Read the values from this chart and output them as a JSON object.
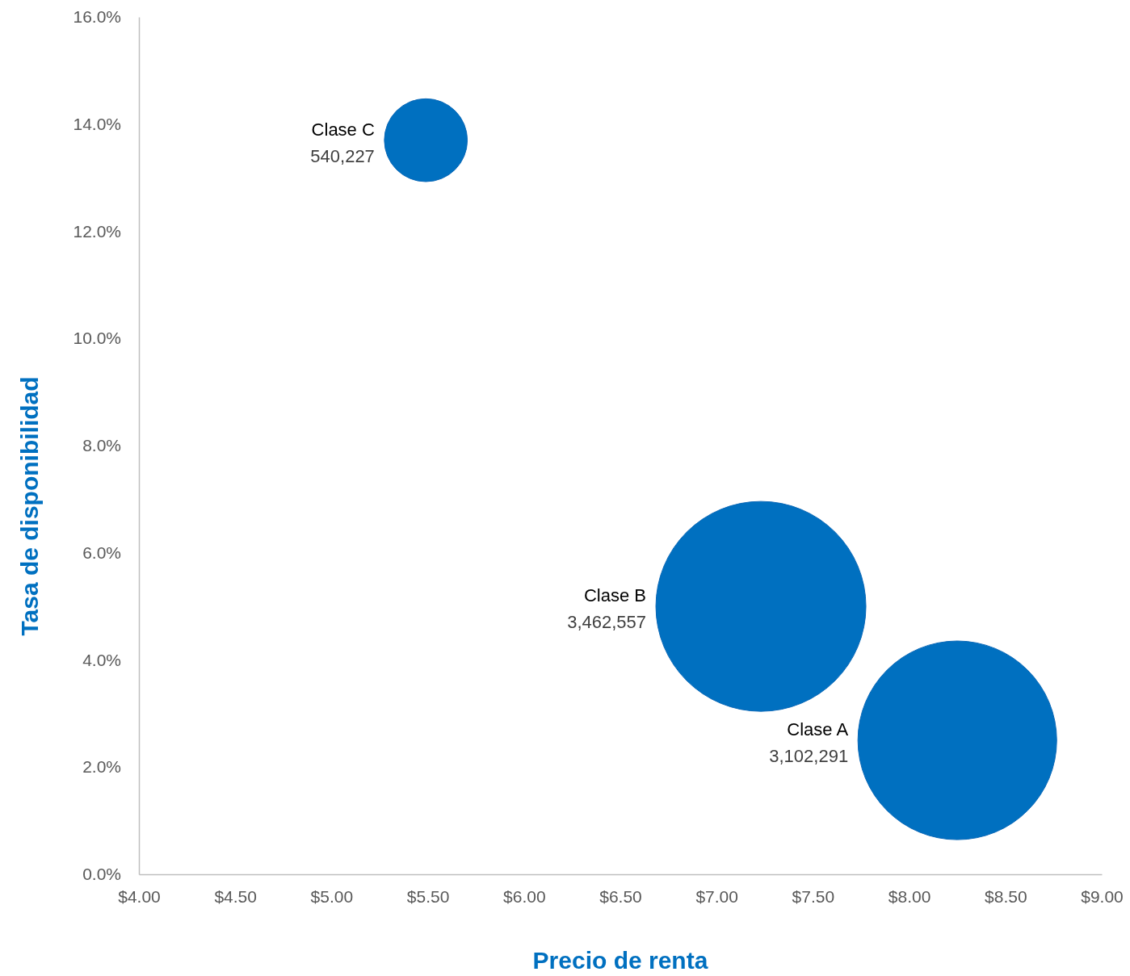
{
  "chart_data": {
    "type": "bubble",
    "xlabel": "Precio de renta",
    "ylabel": "Tasa de disponibilidad",
    "xlim": [
      4,
      9
    ],
    "xticks": [
      {
        "value": 4,
        "label": "$4.00"
      },
      {
        "value": 4.5,
        "label": "$4.50"
      },
      {
        "value": 5,
        "label": "$5.00"
      },
      {
        "value": 5.5,
        "label": "$5.50"
      },
      {
        "value": 6,
        "label": "$6.00"
      },
      {
        "value": 6.5,
        "label": "$6.50"
      },
      {
        "value": 7,
        "label": "$7.00"
      },
      {
        "value": 7.5,
        "label": "$7.50"
      },
      {
        "value": 8,
        "label": "$8.00"
      },
      {
        "value": 8.5,
        "label": "$8.50"
      },
      {
        "value": 9,
        "label": "$9.00"
      }
    ],
    "ylim": [
      0,
      16
    ],
    "yticks": [
      {
        "value": 0,
        "label": "0.0%"
      },
      {
        "value": 2,
        "label": "2.0%"
      },
      {
        "value": 4,
        "label": "4.0%"
      },
      {
        "value": 6,
        "label": "6.0%"
      },
      {
        "value": 8,
        "label": "8.0%"
      },
      {
        "value": 10,
        "label": "10.0%"
      },
      {
        "value": 12,
        "label": "12.0%"
      },
      {
        "value": 14,
        "label": "14.0%"
      },
      {
        "value": 16,
        "label": "16.0%"
      }
    ],
    "grid": false,
    "legend": false,
    "series": [
      {
        "name": "Clase C",
        "color": "#0070c0",
        "x": [
          5.49
        ],
        "values": [
          13.7
        ],
        "sizes": [
          540227
        ],
        "value_labels": [
          "540,227"
        ]
      },
      {
        "name": "Clase B",
        "color": "#0070c0",
        "x": [
          7.23
        ],
        "values": [
          5.0
        ],
        "sizes": [
          3462557
        ],
        "value_labels": [
          "3,462,557"
        ]
      },
      {
        "name": "Clase A",
        "color": "#0070c0",
        "x": [
          8.25
        ],
        "values": [
          2.5
        ],
        "sizes": [
          3102291
        ],
        "value_labels": [
          "3,102,291"
        ]
      }
    ]
  }
}
